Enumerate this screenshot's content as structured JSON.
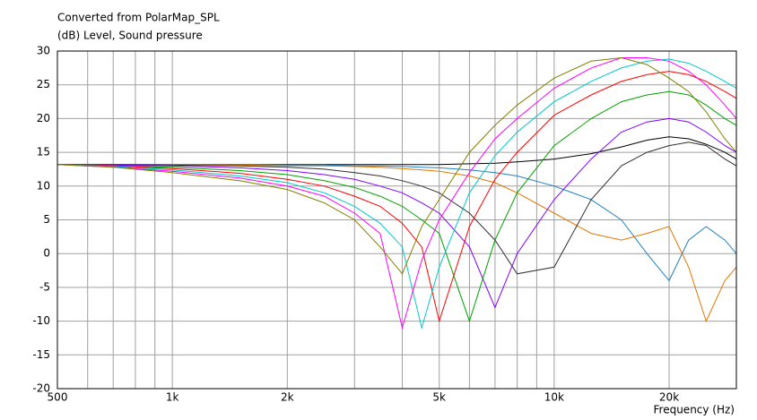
{
  "chart_data": {
    "type": "line",
    "title": "Converted from PolarMap_SPL",
    "y_label": "(dB)  Level, Sound pressure",
    "x_label": "Frequency  (Hz)",
    "x_scale": "log",
    "grid": true,
    "xlim": [
      500,
      30000
    ],
    "ylim": [
      -20,
      30
    ],
    "yticks": [
      -20,
      -15,
      -10,
      -5,
      0,
      5,
      10,
      15,
      20,
      25,
      30
    ],
    "xticks": [
      500,
      {
        "value": 1000,
        "label": "1k"
      },
      {
        "value": 2000,
        "label": "2k"
      },
      {
        "value": 5000,
        "label": "5k"
      },
      {
        "value": 10000,
        "label": "10k"
      },
      {
        "value": 20000,
        "label": "20k"
      }
    ],
    "x_minor_ticks": [
      600,
      700,
      800,
      900,
      3000,
      4000,
      6000,
      7000,
      8000,
      9000,
      30000
    ],
    "x": [
      500,
      700,
      1000,
      1500,
      2000,
      2500,
      3000,
      3500,
      4000,
      4500,
      5000,
      6000,
      7000,
      8000,
      10000,
      12500,
      15000,
      17500,
      20000,
      22500,
      25000,
      28000,
      30000
    ],
    "series": [
      {
        "color": "#000000",
        "values": [
          13.2,
          13.2,
          13.2,
          13.2,
          13.2,
          13.2,
          13.2,
          13.2,
          13.2,
          13.2,
          13.2,
          13.3,
          13.4,
          13.6,
          14,
          14.8,
          15.8,
          16.8,
          17.3,
          17,
          16.2,
          15,
          14
        ]
      },
      {
        "color": "#2080c0",
        "values": [
          13.2,
          13.2,
          13.2,
          13.2,
          13.1,
          13.1,
          13,
          13,
          12.9,
          12.8,
          12.7,
          12.4,
          12,
          11.5,
          10,
          8,
          5,
          0,
          -4,
          2,
          4,
          2,
          0
        ]
      },
      {
        "color": "#e07800",
        "values": [
          13.2,
          13.2,
          13.2,
          13.1,
          13,
          13,
          12.9,
          12.8,
          12.6,
          12.4,
          12.2,
          11.5,
          10.5,
          9,
          6,
          3,
          2,
          3,
          4,
          -2,
          -10,
          -4,
          -2
        ]
      },
      {
        "color": "#303030",
        "values": [
          13.2,
          13.2,
          13.1,
          13,
          12.8,
          12.5,
          12,
          11.5,
          10.8,
          10,
          9,
          6,
          2,
          -3,
          -2,
          8,
          13,
          15,
          16,
          16.5,
          16,
          14,
          13
        ]
      },
      {
        "color": "#8000ff",
        "values": [
          13.2,
          13.1,
          13,
          12.7,
          12.3,
          11.7,
          11,
          10,
          9,
          7.5,
          6,
          1,
          -8,
          0,
          8,
          14,
          18,
          19.5,
          20,
          19.5,
          18,
          16,
          15
        ]
      },
      {
        "color": "#00a000",
        "values": [
          13.2,
          13,
          12.8,
          12.3,
          11.7,
          10.8,
          9.8,
          8.5,
          7,
          5,
          3,
          -10,
          2,
          9,
          16,
          20,
          22.5,
          23.5,
          24,
          23.5,
          22,
          20,
          19
        ]
      },
      {
        "color": "#ff0000",
        "values": [
          13.2,
          13,
          12.6,
          11.9,
          11,
          10,
          8.5,
          7,
          4.5,
          1,
          -10,
          4,
          11,
          15,
          20.5,
          23.5,
          25.5,
          26.5,
          27,
          26.5,
          25.5,
          24,
          23
        ]
      },
      {
        "color": "#00c8c8",
        "values": [
          13.2,
          12.9,
          12.4,
          11.5,
          10.5,
          9,
          7,
          4.5,
          1,
          -11,
          -2,
          9,
          14.5,
          18,
          22.5,
          25.5,
          27.5,
          28.5,
          28.8,
          28.2,
          27,
          25.5,
          24.5
        ]
      },
      {
        "color": "#ff00ff",
        "values": [
          13.2,
          12.8,
          12.2,
          11.2,
          10,
          8.5,
          6,
          3,
          -11,
          -1,
          5,
          12,
          17,
          20,
          24.5,
          27.5,
          29,
          29,
          28.5,
          27,
          25,
          22,
          20
        ]
      },
      {
        "color": "#808000",
        "values": [
          13.2,
          12.8,
          12,
          10.8,
          9.5,
          7.5,
          5,
          1,
          -3,
          4,
          8,
          15,
          19,
          22,
          26,
          28.5,
          29,
          28,
          26,
          24,
          21,
          17,
          15
        ]
      }
    ]
  }
}
